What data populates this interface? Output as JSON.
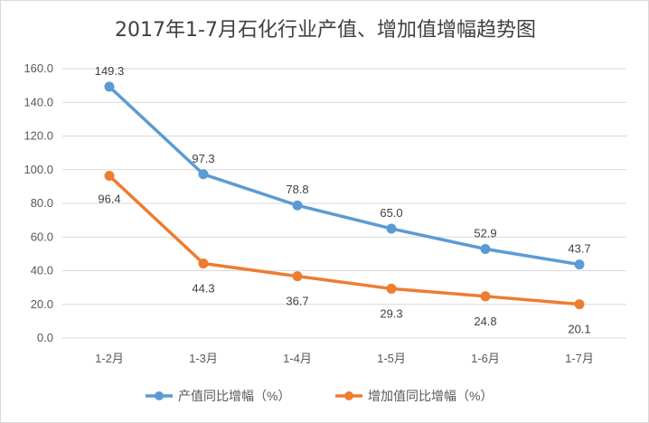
{
  "chart_data": {
    "type": "line",
    "title": "2017年1-7月石化行业产值、增加值增幅趋势图",
    "categories": [
      "1-2月",
      "1-3月",
      "1-4月",
      "1-5月",
      "1-6月",
      "1-7月"
    ],
    "series": [
      {
        "name": "产值同比增幅（%）",
        "values": [
          149.3,
          97.3,
          78.8,
          65.0,
          52.9,
          43.7
        ],
        "color": "#5b9bd5"
      },
      {
        "name": "增加值同比增幅（%）",
        "values": [
          96.4,
          44.3,
          36.7,
          29.3,
          24.8,
          20.1
        ],
        "color": "#ed7d31"
      }
    ],
    "y_ticks": [
      "0.0",
      "20.0",
      "40.0",
      "60.0",
      "80.0",
      "100.0",
      "120.0",
      "140.0",
      "160.0"
    ],
    "ylim": [
      0,
      160
    ],
    "grid": true,
    "legend_position": "bottom"
  }
}
